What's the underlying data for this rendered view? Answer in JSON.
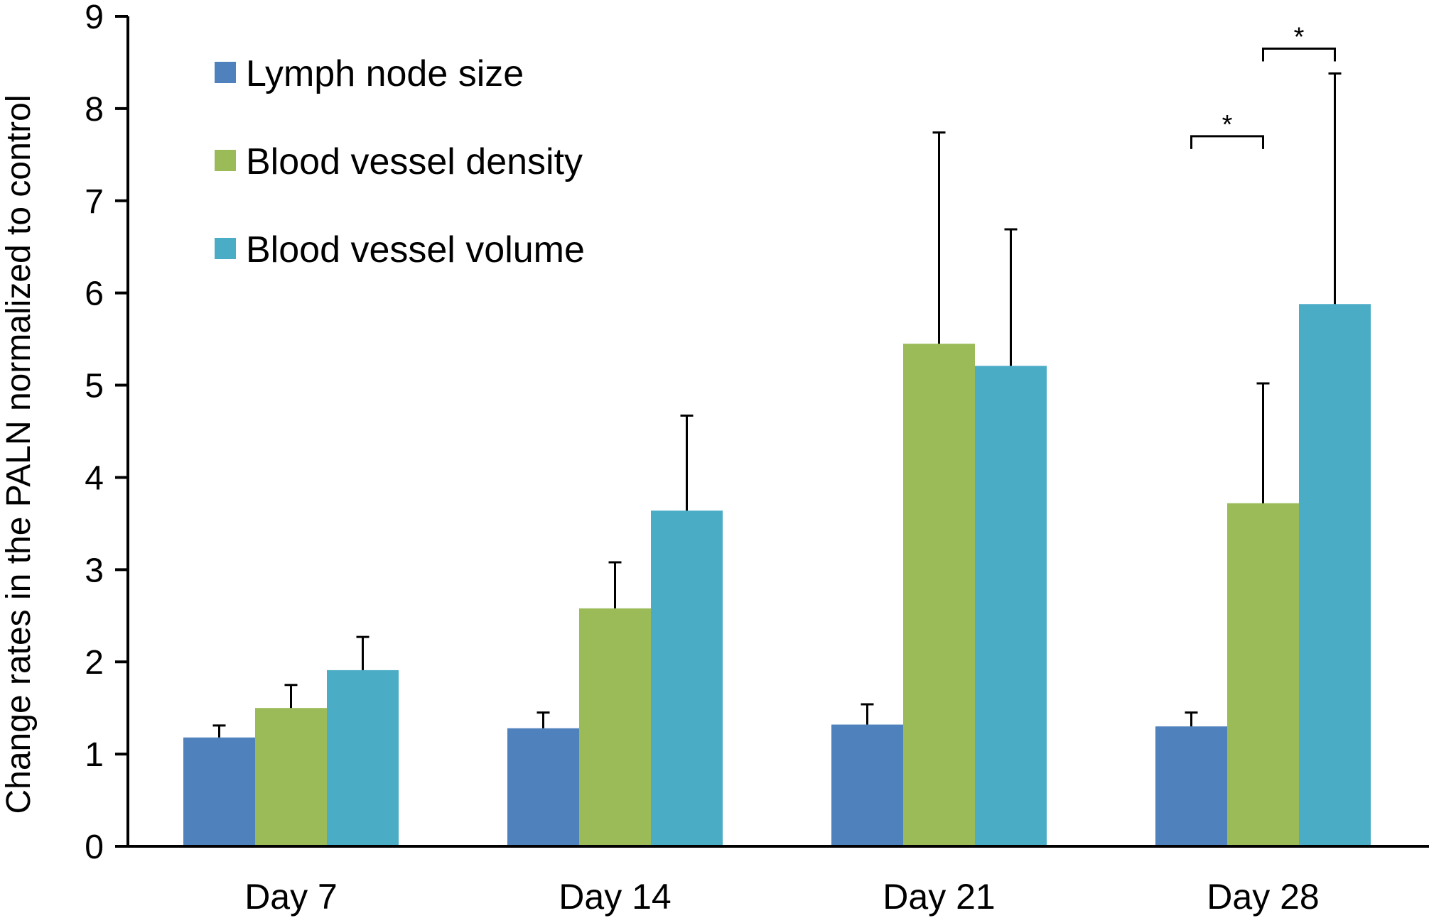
{
  "chart_data": {
    "type": "bar",
    "title": "",
    "xlabel": "",
    "ylabel": "Change rates in the PALN  normalized to control",
    "ylim": [
      0,
      9
    ],
    "yticks": [
      0,
      1,
      2,
      3,
      4,
      5,
      6,
      7,
      8,
      9
    ],
    "categories": [
      "Day 7",
      "Day 14",
      "Day 21",
      "Day 28"
    ],
    "series": [
      {
        "name": "Lymph node size",
        "color": "#4f81bd",
        "values": [
          1.18,
          1.28,
          1.32,
          1.3
        ],
        "errors": [
          0.13,
          0.17,
          0.22,
          0.15
        ]
      },
      {
        "name": "Blood vessel density",
        "color": "#9bbb59",
        "values": [
          1.5,
          2.58,
          5.45,
          3.72
        ],
        "errors": [
          0.25,
          0.5,
          2.29,
          1.3
        ]
      },
      {
        "name": "Blood vessel volume",
        "color": "#4bacc6",
        "values": [
          1.91,
          3.64,
          5.21,
          5.88
        ],
        "errors": [
          0.36,
          1.03,
          1.48,
          2.5
        ]
      }
    ],
    "legend_position": "top-left",
    "grid": false,
    "annotations": [
      {
        "text": "*",
        "category": "Day 28",
        "from_series": "Lymph node size",
        "to_series": "Blood vessel density",
        "level": 7.7
      },
      {
        "text": "*",
        "category": "Day 28",
        "from_series": "Blood vessel density",
        "to_series": "Blood vessel volume",
        "level": 8.65
      }
    ]
  }
}
